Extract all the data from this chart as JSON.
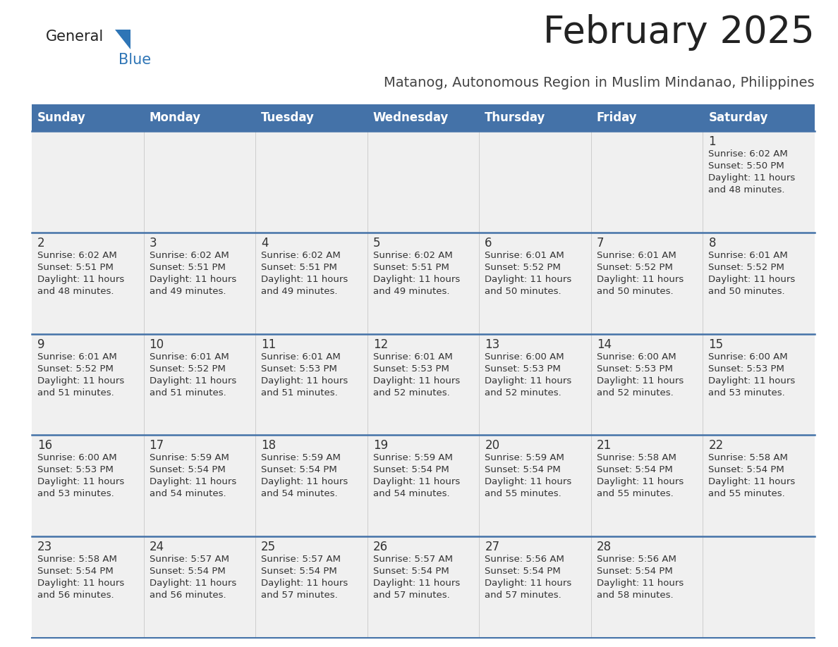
{
  "title": "February 2025",
  "subtitle": "Matanog, Autonomous Region in Muslim Mindanao, Philippines",
  "days_of_week": [
    "Sunday",
    "Monday",
    "Tuesday",
    "Wednesday",
    "Thursday",
    "Friday",
    "Saturday"
  ],
  "header_bg": "#4472a8",
  "header_text": "#ffffff",
  "row_bg": "#f0f0f0",
  "separator_color": "#4472a8",
  "text_color": "#333333",
  "title_color": "#222222",
  "subtitle_color": "#444444",
  "logo_general_color": "#222222",
  "logo_blue_color": "#2e75b6",
  "calendar_data": [
    {
      "day": 1,
      "col": 6,
      "row": 0,
      "sunrise": "6:02 AM",
      "sunset": "5:50 PM",
      "daylight_hours": 11,
      "daylight_minutes": 48
    },
    {
      "day": 2,
      "col": 0,
      "row": 1,
      "sunrise": "6:02 AM",
      "sunset": "5:51 PM",
      "daylight_hours": 11,
      "daylight_minutes": 48
    },
    {
      "day": 3,
      "col": 1,
      "row": 1,
      "sunrise": "6:02 AM",
      "sunset": "5:51 PM",
      "daylight_hours": 11,
      "daylight_minutes": 49
    },
    {
      "day": 4,
      "col": 2,
      "row": 1,
      "sunrise": "6:02 AM",
      "sunset": "5:51 PM",
      "daylight_hours": 11,
      "daylight_minutes": 49
    },
    {
      "day": 5,
      "col": 3,
      "row": 1,
      "sunrise": "6:02 AM",
      "sunset": "5:51 PM",
      "daylight_hours": 11,
      "daylight_minutes": 49
    },
    {
      "day": 6,
      "col": 4,
      "row": 1,
      "sunrise": "6:01 AM",
      "sunset": "5:52 PM",
      "daylight_hours": 11,
      "daylight_minutes": 50
    },
    {
      "day": 7,
      "col": 5,
      "row": 1,
      "sunrise": "6:01 AM",
      "sunset": "5:52 PM",
      "daylight_hours": 11,
      "daylight_minutes": 50
    },
    {
      "day": 8,
      "col": 6,
      "row": 1,
      "sunrise": "6:01 AM",
      "sunset": "5:52 PM",
      "daylight_hours": 11,
      "daylight_minutes": 50
    },
    {
      "day": 9,
      "col": 0,
      "row": 2,
      "sunrise": "6:01 AM",
      "sunset": "5:52 PM",
      "daylight_hours": 11,
      "daylight_minutes": 51
    },
    {
      "day": 10,
      "col": 1,
      "row": 2,
      "sunrise": "6:01 AM",
      "sunset": "5:52 PM",
      "daylight_hours": 11,
      "daylight_minutes": 51
    },
    {
      "day": 11,
      "col": 2,
      "row": 2,
      "sunrise": "6:01 AM",
      "sunset": "5:53 PM",
      "daylight_hours": 11,
      "daylight_minutes": 51
    },
    {
      "day": 12,
      "col": 3,
      "row": 2,
      "sunrise": "6:01 AM",
      "sunset": "5:53 PM",
      "daylight_hours": 11,
      "daylight_minutes": 52
    },
    {
      "day": 13,
      "col": 4,
      "row": 2,
      "sunrise": "6:00 AM",
      "sunset": "5:53 PM",
      "daylight_hours": 11,
      "daylight_minutes": 52
    },
    {
      "day": 14,
      "col": 5,
      "row": 2,
      "sunrise": "6:00 AM",
      "sunset": "5:53 PM",
      "daylight_hours": 11,
      "daylight_minutes": 52
    },
    {
      "day": 15,
      "col": 6,
      "row": 2,
      "sunrise": "6:00 AM",
      "sunset": "5:53 PM",
      "daylight_hours": 11,
      "daylight_minutes": 53
    },
    {
      "day": 16,
      "col": 0,
      "row": 3,
      "sunrise": "6:00 AM",
      "sunset": "5:53 PM",
      "daylight_hours": 11,
      "daylight_minutes": 53
    },
    {
      "day": 17,
      "col": 1,
      "row": 3,
      "sunrise": "5:59 AM",
      "sunset": "5:54 PM",
      "daylight_hours": 11,
      "daylight_minutes": 54
    },
    {
      "day": 18,
      "col": 2,
      "row": 3,
      "sunrise": "5:59 AM",
      "sunset": "5:54 PM",
      "daylight_hours": 11,
      "daylight_minutes": 54
    },
    {
      "day": 19,
      "col": 3,
      "row": 3,
      "sunrise": "5:59 AM",
      "sunset": "5:54 PM",
      "daylight_hours": 11,
      "daylight_minutes": 54
    },
    {
      "day": 20,
      "col": 4,
      "row": 3,
      "sunrise": "5:59 AM",
      "sunset": "5:54 PM",
      "daylight_hours": 11,
      "daylight_minutes": 55
    },
    {
      "day": 21,
      "col": 5,
      "row": 3,
      "sunrise": "5:58 AM",
      "sunset": "5:54 PM",
      "daylight_hours": 11,
      "daylight_minutes": 55
    },
    {
      "day": 22,
      "col": 6,
      "row": 3,
      "sunrise": "5:58 AM",
      "sunset": "5:54 PM",
      "daylight_hours": 11,
      "daylight_minutes": 55
    },
    {
      "day": 23,
      "col": 0,
      "row": 4,
      "sunrise": "5:58 AM",
      "sunset": "5:54 PM",
      "daylight_hours": 11,
      "daylight_minutes": 56
    },
    {
      "day": 24,
      "col": 1,
      "row": 4,
      "sunrise": "5:57 AM",
      "sunset": "5:54 PM",
      "daylight_hours": 11,
      "daylight_minutes": 56
    },
    {
      "day": 25,
      "col": 2,
      "row": 4,
      "sunrise": "5:57 AM",
      "sunset": "5:54 PM",
      "daylight_hours": 11,
      "daylight_minutes": 57
    },
    {
      "day": 26,
      "col": 3,
      "row": 4,
      "sunrise": "5:57 AM",
      "sunset": "5:54 PM",
      "daylight_hours": 11,
      "daylight_minutes": 57
    },
    {
      "day": 27,
      "col": 4,
      "row": 4,
      "sunrise": "5:56 AM",
      "sunset": "5:54 PM",
      "daylight_hours": 11,
      "daylight_minutes": 57
    },
    {
      "day": 28,
      "col": 5,
      "row": 4,
      "sunrise": "5:56 AM",
      "sunset": "5:54 PM",
      "daylight_hours": 11,
      "daylight_minutes": 58
    }
  ]
}
